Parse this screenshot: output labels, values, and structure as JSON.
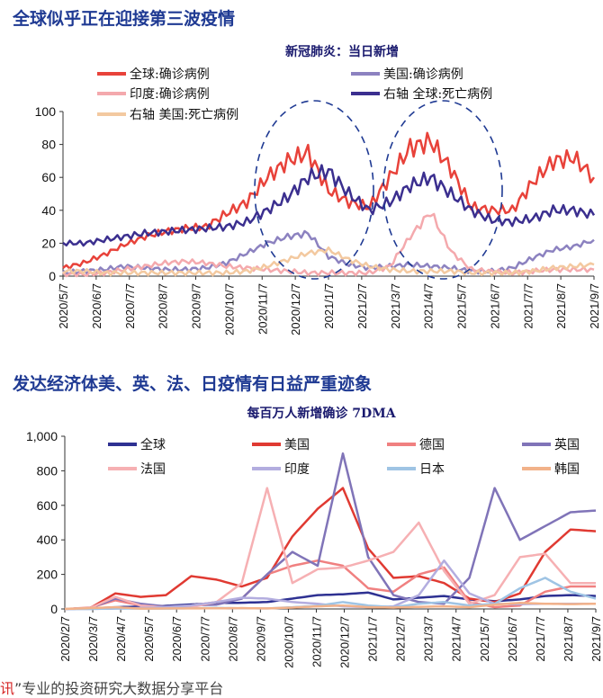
{
  "section1": {
    "heading": "全球似乎正在迎接第三波疫情"
  },
  "section2": {
    "heading": "发达经济体美、英、法、日疫情有日益严重迹象"
  },
  "footer": {
    "prefix": "讯",
    "text": "”专业的投资研究大数据分享平台"
  },
  "chart_data": [
    {
      "type": "line",
      "title": "新冠肺炎：当日新增",
      "x_ticks": [
        "2020/5/7",
        "2020/6/7",
        "2020/7/7",
        "2020/8/7",
        "2020/9/7",
        "2020/10/7",
        "2020/11/7",
        "2020/12/7",
        "2021/1/7",
        "2021/2/7",
        "2021/3/7",
        "2021/4/7",
        "2021/5/7",
        "2021/6/7",
        "2021/7/7",
        "2021/8/7",
        "2021/9/7"
      ],
      "y_ticks": [
        "0",
        "20",
        "40",
        "60",
        "80",
        "100"
      ],
      "ylim": [
        0,
        100
      ],
      "annotations": [
        "dashed ellipse around 2020/11–2021/2 peak",
        "dashed ellipse around 2021/3–2021/6 peak"
      ],
      "series": [
        {
          "name": "全球:确诊病例",
          "color": "#e8423a",
          "values": [
            5,
            8,
            13,
            19,
            24,
            27,
            29,
            30,
            38,
            45,
            60,
            70,
            75,
            52,
            45,
            42,
            60,
            78,
            82,
            65,
            42,
            40,
            40,
            57,
            70,
            72,
            60
          ]
        },
        {
          "name": "美国:确诊病例",
          "color": "#8c82c0",
          "values": [
            2,
            3,
            4,
            6,
            5,
            4,
            4,
            5,
            8,
            14,
            20,
            24,
            26,
            12,
            7,
            5,
            6,
            7,
            6,
            5,
            3,
            3,
            5,
            11,
            16,
            18,
            22
          ]
        },
        {
          "name": "印度:确诊病例",
          "color": "#f4a9ad",
          "values": [
            1,
            1,
            2,
            4,
            6,
            8,
            9,
            8,
            6,
            5,
            4,
            3,
            2,
            2,
            2,
            2,
            6,
            24,
            39,
            15,
            4,
            3,
            2,
            3,
            4,
            4,
            4
          ]
        },
        {
          "name": "右轴 全球:死亡病例",
          "color": "#3b2f8f",
          "values": [
            20,
            20,
            22,
            24,
            26,
            27,
            28,
            29,
            30,
            33,
            40,
            48,
            60,
            64,
            50,
            40,
            45,
            55,
            60,
            50,
            40,
            34,
            33,
            35,
            40,
            40,
            37
          ]
        },
        {
          "name": "右轴 美国:死亡病例",
          "color": "#f3c9a0",
          "values": [
            3,
            3,
            2,
            2,
            2,
            2,
            2,
            2,
            2,
            3,
            6,
            10,
            14,
            16,
            10,
            6,
            4,
            3,
            3,
            3,
            2,
            2,
            2,
            3,
            5,
            6,
            7
          ]
        }
      ]
    },
    {
      "type": "line",
      "title": "每百万人新增确诊 7DMA",
      "x_ticks": [
        "2020/2/7",
        "2020/3/7",
        "2020/4/7",
        "2020/5/7",
        "2020/6/7",
        "2020/7/7",
        "2020/8/7",
        "2020/9/7",
        "2020/10/7",
        "2020/11/7",
        "2020/12/7",
        "2021/1/7",
        "2021/2/7",
        "2021/3/7",
        "2021/4/7",
        "2021/5/7",
        "2021/6/7",
        "2021/7/7",
        "2021/8/7",
        "2021/9/7"
      ],
      "y_ticks": [
        "0",
        "200",
        "400",
        "600",
        "800",
        "1,000"
      ],
      "ylim": [
        0,
        1000
      ],
      "series": [
        {
          "name": "全球",
          "color": "#2e3192",
          "values": [
            0,
            2,
            10,
            14,
            18,
            26,
            34,
            36,
            40,
            60,
            80,
            85,
            95,
            55,
            65,
            75,
            55,
            45,
            55,
            75,
            80,
            75
          ]
        },
        {
          "name": "美国",
          "color": "#e03a32",
          "values": [
            0,
            5,
            90,
            70,
            80,
            190,
            170,
            130,
            180,
            420,
            580,
            700,
            350,
            180,
            190,
            150,
            60,
            40,
            90,
            330,
            460,
            450
          ]
        },
        {
          "name": "德国",
          "color": "#f08080",
          "values": [
            0,
            8,
            50,
            20,
            12,
            20,
            40,
            60,
            200,
            250,
            280,
            250,
            120,
            100,
            200,
            240,
            40,
            10,
            20,
            100,
            130,
            130
          ]
        },
        {
          "name": "英国",
          "color": "#8074b8",
          "values": [
            0,
            5,
            60,
            30,
            15,
            20,
            25,
            60,
            200,
            330,
            250,
            900,
            300,
            80,
            40,
            30,
            180,
            700,
            400,
            480,
            560,
            570
          ]
        },
        {
          "name": "法国",
          "color": "#f6b0b3",
          "values": [
            0,
            5,
            70,
            20,
            8,
            10,
            40,
            150,
            700,
            150,
            230,
            240,
            280,
            330,
            500,
            220,
            30,
            80,
            300,
            320,
            150,
            150
          ]
        },
        {
          "name": "印度",
          "color": "#b3addf",
          "values": [
            0,
            0,
            2,
            6,
            10,
            20,
            40,
            65,
            60,
            40,
            30,
            15,
            10,
            15,
            80,
            280,
            90,
            30,
            28,
            30,
            30,
            30
          ]
        },
        {
          "name": "日本",
          "color": "#9fc4e4",
          "values": [
            0,
            0,
            3,
            2,
            2,
            4,
            6,
            4,
            3,
            10,
            18,
            40,
            20,
            10,
            30,
            40,
            20,
            30,
            120,
            180,
            100,
            60
          ]
        },
        {
          "name": "韩国",
          "color": "#f2b28a",
          "values": [
            0,
            5,
            10,
            2,
            3,
            3,
            4,
            5,
            3,
            8,
            15,
            20,
            10,
            8,
            12,
            15,
            10,
            25,
            35,
            30,
            28,
            30
          ]
        }
      ]
    }
  ]
}
